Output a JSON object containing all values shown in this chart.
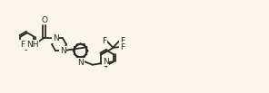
{
  "bg_color": "#fbf6ea",
  "bond_color": "#2a2a2a",
  "atom_color": "#2a2a2a",
  "line_width": 1.3,
  "font_size": 6.5,
  "fig_width": 2.96,
  "fig_height": 1.03,
  "dpi": 100,
  "xlim": [
    0,
    29.6
  ],
  "ylim": [
    0,
    10.3
  ]
}
